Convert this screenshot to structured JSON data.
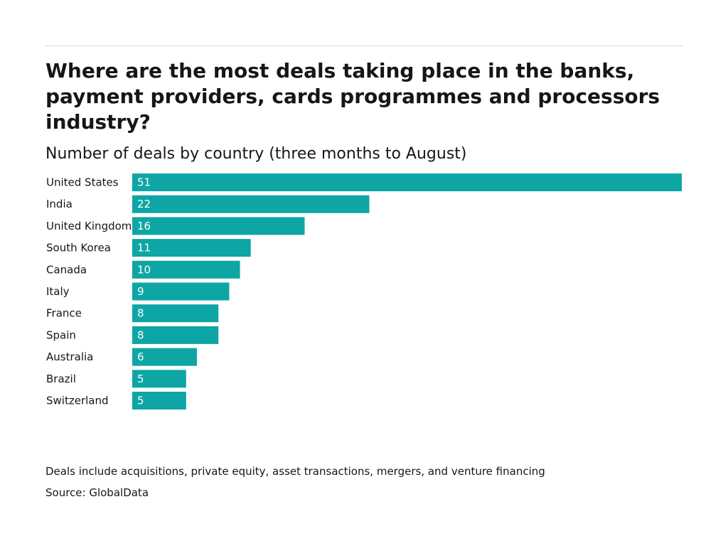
{
  "chart_data": {
    "type": "bar",
    "orientation": "horizontal",
    "title": "Where are the most deals taking place in the banks, payment providers, cards programmes and processors industry?",
    "subtitle": "Number of deals by country (three months to August)",
    "categories": [
      "United States",
      "India",
      "United Kingdom",
      "South Korea",
      "Canada",
      "Italy",
      "France",
      "Spain",
      "Australia",
      "Brazil",
      "Switzerland"
    ],
    "values": [
      51,
      22,
      16,
      11,
      10,
      9,
      8,
      8,
      6,
      5,
      5
    ],
    "xlim": [
      0,
      51
    ],
    "bar_color": "#0ea5a5",
    "grid": false,
    "legend": "none",
    "data_labels": "inside-start"
  },
  "footer": {
    "note": "Deals include acquisitions, private equity, asset transactions, mergers, and venture financing",
    "source": "Source: GlobalData"
  }
}
